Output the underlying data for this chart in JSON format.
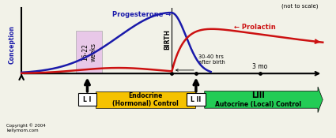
{
  "title_note": "(not to scale)",
  "bg_color": "#f2f2e8",
  "conception_label": "Conception",
  "birth_label": "BIRTH",
  "progesterone_color": "#1a1aaa",
  "prolactin_color": "#cc1111",
  "pink_box_color": "#e8c8e8",
  "pink_box_label": "16-22\nweeks",
  "endocrine_color": "#f5c200",
  "autocrine_color": "#22cc55",
  "li_label": "L I",
  "lii_label": "L II",
  "liii_label": "LIII",
  "endocrine_text": "Endocrine\n(Hormonal) Control",
  "autocrine_text1": "LIII",
  "autocrine_text2": "Autocrine (Local) Control",
  "note_30_40": "30-40 hrs\nafter birth",
  "note_3mo": "3 mo",
  "copyright": "Copyright © 2004\nkellymom.com",
  "progesterone_label": "Progesterone →",
  "prolactin_label": "← Prolactin"
}
